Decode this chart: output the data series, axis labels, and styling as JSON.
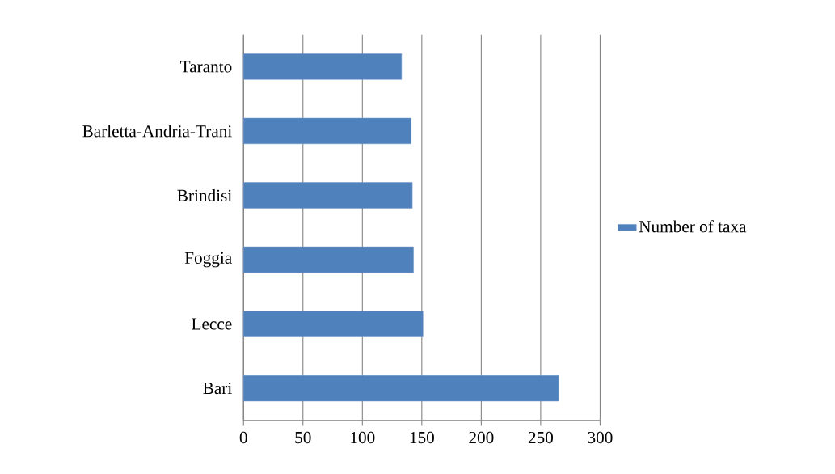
{
  "chart_data": {
    "type": "bar",
    "orientation": "horizontal",
    "categories": [
      "Taranto",
      "Barletta-Andria-Trani",
      "Brindisi",
      "Foggia",
      "Lecce",
      "Bari"
    ],
    "series": [
      {
        "name": "Number of taxa",
        "color": "#4f81bd",
        "values": [
          133,
          141,
          142,
          143,
          151,
          265
        ]
      }
    ],
    "xlim": [
      0,
      300
    ],
    "xticks": [
      0,
      50,
      100,
      150,
      200,
      250,
      300
    ],
    "grid": "x",
    "legend": "right"
  }
}
